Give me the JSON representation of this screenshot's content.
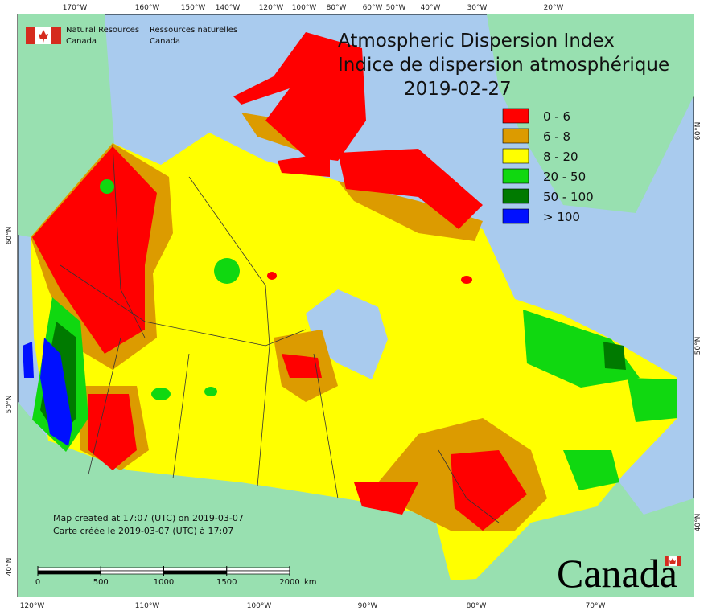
{
  "header": {
    "org_en_line1": "Natural Resources",
    "org_en_line2": "Canada",
    "org_fr_line1": "Ressources naturelles",
    "org_fr_line2": "Canada"
  },
  "title": {
    "line1": "Atmospheric Dispersion Index",
    "line2": "Indice de dispersion atmosphérique",
    "date": "2019-02-27"
  },
  "legend": [
    {
      "label": "0 - 6",
      "color": "#ff0000"
    },
    {
      "label": "6 - 8",
      "color": "#dc9b00"
    },
    {
      "label": "8 - 20",
      "color": "#ffff00"
    },
    {
      "label": "20 - 50",
      "color": "#10d810"
    },
    {
      "label": "50 - 100",
      "color": "#007a00"
    },
    {
      "label": "> 100",
      "color": "#0010ff"
    }
  ],
  "graticule": {
    "top": [
      "170°W",
      "160°W",
      "150°W",
      "140°W",
      "120°W",
      "100°W",
      "80°W",
      "60°W",
      "50°W",
      "40°W",
      "30°W",
      "20°W"
    ],
    "bottom": [
      "120°W",
      "110°W",
      "100°W",
      "90°W",
      "80°W",
      "70°W"
    ],
    "left": [
      "60°N",
      "50°N",
      "40°N"
    ],
    "right": [
      "60°N",
      "50°N",
      "40°N"
    ]
  },
  "notes": [
    "Map created at 17:07 (UTC) on 2019-03-07",
    "Carte créée le 2019-03-07 (UTC) à 17:07"
  ],
  "scale_bar": {
    "ticks": [
      0,
      500,
      1000,
      1500,
      2000
    ],
    "unit": "km"
  },
  "wordmark": "Canada"
}
